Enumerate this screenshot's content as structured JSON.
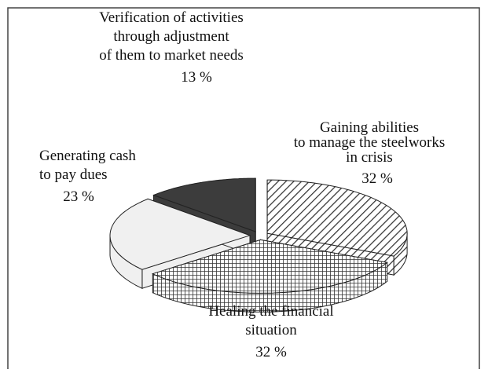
{
  "chart_data": {
    "type": "pie",
    "categories": [
      "Gaining abilities\nto manage the steelworks\nin crisis",
      "Healing the financial\nsituation",
      "Generating cash\nto pay dues",
      "Verification of activities\nthrough adjustment\nof them to market needs"
    ],
    "values": [
      32,
      32,
      23,
      13
    ],
    "value_labels": [
      "32 %",
      "32 %",
      "23 %",
      "13 %"
    ],
    "colors": [
      "#ffffff",
      "#ffffff",
      "#f0f0f0",
      "#3c3c3c"
    ],
    "patterns": [
      "hatch",
      "grid",
      "none",
      "none"
    ]
  }
}
